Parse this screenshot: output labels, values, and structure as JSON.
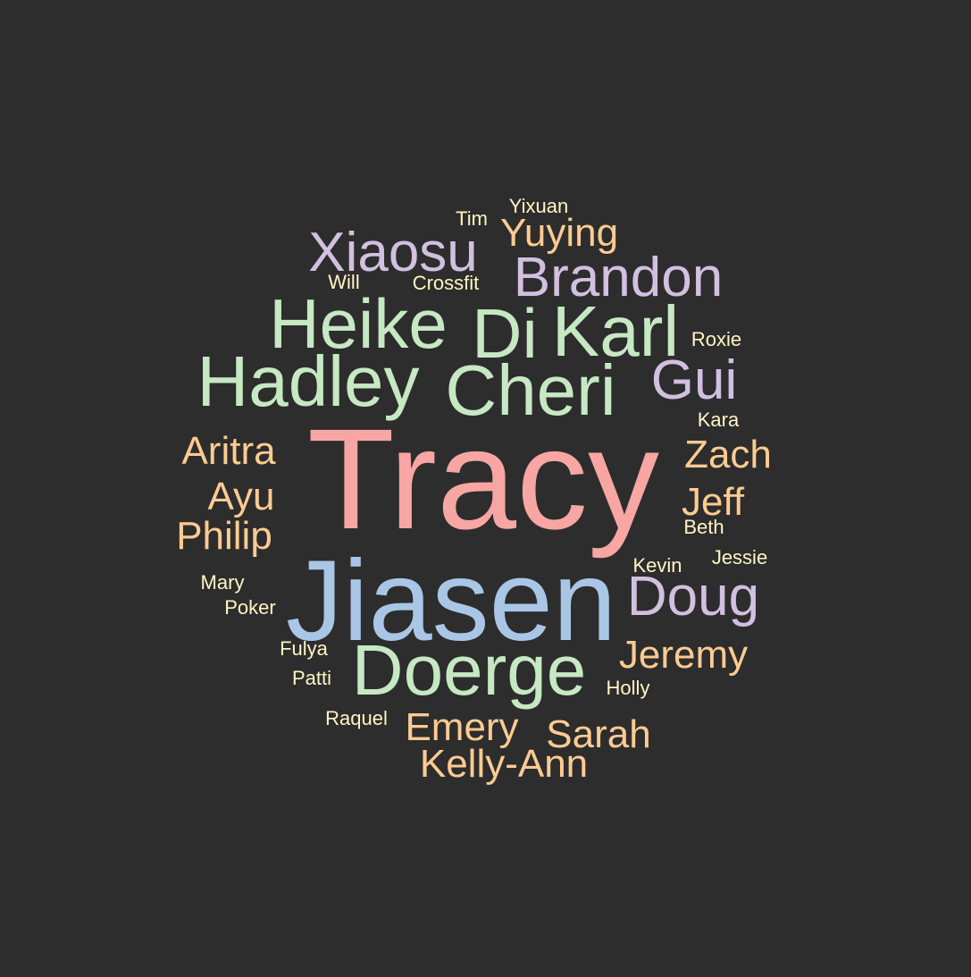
{
  "colors": {
    "background": "#2d2d2d",
    "red": "#f7a6a3",
    "blue": "#a9c6e6",
    "green": "#c6e8c3",
    "purple": "#d2c0e0",
    "orange": "#fdcb92",
    "yellow": "#fff5c4"
  },
  "words": {
    "tracy": "Tracy",
    "jiasen": "Jiasen",
    "doerge": "Doerge",
    "cheri": "Cheri",
    "hadley": "Hadley",
    "heike": "Heike",
    "karl": "Karl",
    "di": "Di",
    "xiaosu": "Xiaosu",
    "brandon": "Brandon",
    "gui": "Gui",
    "doug": "Doug",
    "yuying": "Yuying",
    "zach": "Zach",
    "jeff": "Jeff",
    "aritra": "Aritra",
    "ayu": "Ayu",
    "philip": "Philip",
    "jeremy": "Jeremy",
    "emery": "Emery",
    "sarah": "Sarah",
    "kelly_ann": "Kelly-Ann",
    "yixuan": "Yixuan",
    "tim": "Tim",
    "will": "Will",
    "crossfit": "Crossfit",
    "roxie": "Roxie",
    "kara": "Kara",
    "beth": "Beth",
    "jessie": "Jessie",
    "kevin": "Kevin",
    "mary": "Mary",
    "poker": "Poker",
    "fulya": "Fulya",
    "patti": "Patti",
    "holly": "Holly",
    "raquel": "Raquel"
  }
}
